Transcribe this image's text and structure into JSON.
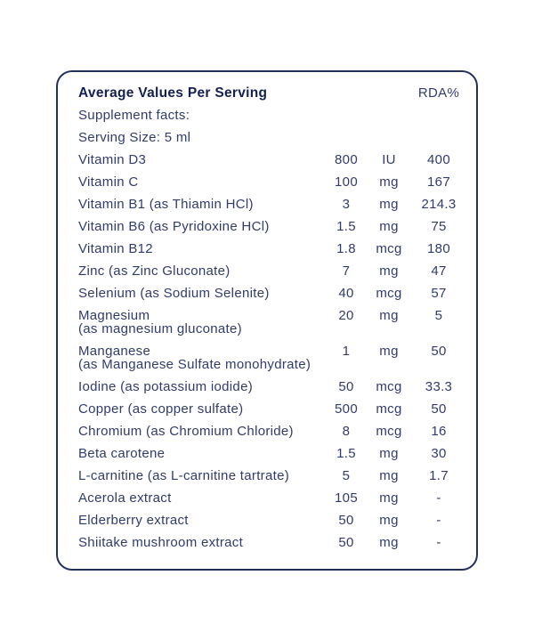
{
  "colors": {
    "background": "#ffffff",
    "card_border": "#232f5e",
    "title_text": "#141f52",
    "body_text": "#303c6b"
  },
  "table": {
    "title": "Average Values Per Serving",
    "rda_header": "RDA%",
    "info_rows": [
      "Supplement facts:",
      "Serving Size: 5 ml"
    ],
    "rows": [
      {
        "name": "Vitamin D3",
        "name2": "",
        "amount": "800",
        "unit": "IU",
        "rda": "400"
      },
      {
        "name": "Vitamin C",
        "name2": "",
        "amount": "100",
        "unit": "mg",
        "rda": "167"
      },
      {
        "name": "Vitamin B1 (as Thiamin HCl)",
        "name2": "",
        "amount": "3",
        "unit": "mg",
        "rda": "214.3"
      },
      {
        "name": "Vitamin B6 (as Pyridoxine HCl)",
        "name2": "",
        "amount": "1.5",
        "unit": "mg",
        "rda": "75"
      },
      {
        "name": "Vitamin B12",
        "name2": "",
        "amount": "1.8",
        "unit": "mcg",
        "rda": "180"
      },
      {
        "name": "Zinc (as Zinc Gluconate)",
        "name2": "",
        "amount": "7",
        "unit": "mg",
        "rda": "47"
      },
      {
        "name": "Selenium (as Sodium Selenite)",
        "name2": "",
        "amount": "40",
        "unit": "mcg",
        "rda": "57"
      },
      {
        "name": "Magnesium",
        "name2": "(as magnesium gluconate)",
        "amount": "20",
        "unit": "mg",
        "rda": "5"
      },
      {
        "name": "Manganese",
        "name2": "(as Manganese Sulfate monohydrate)",
        "amount": "1",
        "unit": "mg",
        "rda": "50"
      },
      {
        "name": "Iodine (as potassium iodide)",
        "name2": "",
        "amount": "50",
        "unit": "mcg",
        "rda": "33.3"
      },
      {
        "name": "Copper (as copper sulfate)",
        "name2": "",
        "amount": "500",
        "unit": "mcg",
        "rda": "50"
      },
      {
        "name": "Chromium (as Chromium Chloride)",
        "name2": "",
        "amount": "8",
        "unit": "mcg",
        "rda": "16"
      },
      {
        "name": "Beta carotene",
        "name2": "",
        "amount": "1.5",
        "unit": "mg",
        "rda": "30"
      },
      {
        "name": "L-carnitine (as L-carnitine tartrate)",
        "name2": "",
        "amount": "5",
        "unit": "mg",
        "rda": "1.7"
      },
      {
        "name": "Acerola extract",
        "name2": "",
        "amount": "105",
        "unit": "mg",
        "rda": "-"
      },
      {
        "name": "Elderberry extract",
        "name2": "",
        "amount": "50",
        "unit": "mg",
        "rda": "-"
      },
      {
        "name": "Shiitake mushroom extract",
        "name2": "",
        "amount": "50",
        "unit": "mg",
        "rda": "-"
      }
    ]
  }
}
